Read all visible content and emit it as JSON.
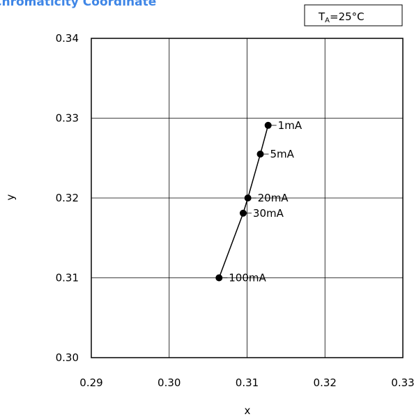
{
  "chart_data": {
    "type": "line",
    "title": "Chromaticity Coordinate",
    "xlabel": "x",
    "ylabel": "y",
    "xlim": [
      0.29,
      0.33
    ],
    "ylim": [
      0.3,
      0.34
    ],
    "x_ticks": [
      "0.29",
      "0.30",
      "0.31",
      "0.32",
      "0.33"
    ],
    "y_ticks": [
      "0.30",
      "0.31",
      "0.32",
      "0.33",
      "0.34"
    ],
    "grid": true,
    "condition": {
      "main": "T",
      "sub": "A",
      "rest": "=25°C"
    },
    "points": [
      {
        "label": "1mA",
        "x": 0.3127,
        "y": 0.3291
      },
      {
        "label": "5mA",
        "x": 0.3117,
        "y": 0.3255
      },
      {
        "label": "20mA",
        "x": 0.3101,
        "y": 0.32
      },
      {
        "label": "30mA",
        "x": 0.3095,
        "y": 0.3181
      },
      {
        "label": "100mA",
        "x": 0.3064,
        "y": 0.31
      }
    ],
    "colors": {
      "title": "#3f86e6",
      "line": "#000000",
      "grid": "#000000"
    }
  }
}
